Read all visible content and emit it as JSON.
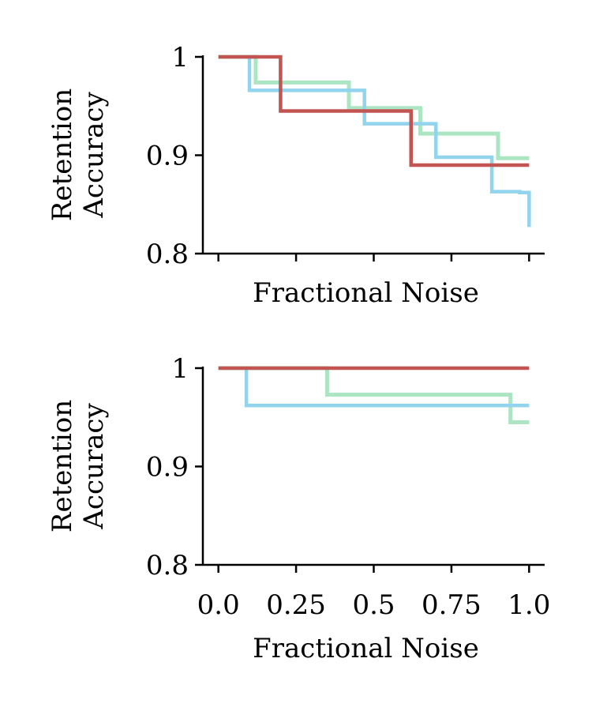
{
  "chart_data": [
    {
      "type": "line",
      "step": true,
      "xlabel": "Fractional Noise",
      "ylabel": [
        "Retention",
        "Accuracy"
      ],
      "xlim": [
        -0.05,
        1.05
      ],
      "ylim": [
        0.8,
        1.0
      ],
      "xticks": [
        0.0,
        0.25,
        0.5,
        0.75,
        1.0
      ],
      "xtick_labels": [
        "",
        "",
        "",
        "",
        ""
      ],
      "yticks": [
        0.8,
        0.9,
        1.0
      ],
      "ytick_labels": [
        "0.8",
        "0.9",
        "1"
      ],
      "series": [
        {
          "color": "#abe5c2",
          "x": [
            0.0,
            0.12,
            0.12,
            0.42,
            0.42,
            0.65,
            0.65,
            0.9,
            0.9,
            1.0
          ],
          "y": [
            1.0,
            1.0,
            0.974,
            0.974,
            0.948,
            0.948,
            0.922,
            0.922,
            0.897,
            0.897
          ]
        },
        {
          "color": "#92d4ee",
          "x": [
            0.1,
            0.1,
            0.47,
            0.47,
            0.7,
            0.7,
            0.88,
            0.88,
            0.97,
            0.97,
            1.0,
            1.0
          ],
          "y": [
            1.0,
            0.966,
            0.966,
            0.932,
            0.932,
            0.898,
            0.898,
            0.863,
            0.863,
            0.862,
            0.862,
            0.827
          ]
        },
        {
          "color": "#c25452",
          "x": [
            0.0,
            0.2,
            0.2,
            0.62,
            0.62,
            1.0
          ],
          "y": [
            1.0,
            1.0,
            0.945,
            0.945,
            0.89,
            0.89
          ]
        }
      ]
    },
    {
      "type": "line",
      "step": true,
      "xlabel": "Fractional Noise",
      "ylabel": [
        "Retention",
        "Accuracy"
      ],
      "xlim": [
        -0.05,
        1.05
      ],
      "ylim": [
        0.8,
        1.0
      ],
      "xticks": [
        0.0,
        0.25,
        0.5,
        0.75,
        1.0
      ],
      "xtick_labels": [
        "0.0",
        "0.25",
        "0.5",
        "0.75",
        "1.0"
      ],
      "yticks": [
        0.8,
        0.9,
        1.0
      ],
      "ytick_labels": [
        "0.8",
        "0.9",
        "1"
      ],
      "series": [
        {
          "color": "#abe5c2",
          "x": [
            0.0,
            0.35,
            0.35,
            0.94,
            0.94,
            1.0
          ],
          "y": [
            1.0,
            1.0,
            0.973,
            0.973,
            0.945,
            0.945
          ]
        },
        {
          "color": "#92d4ee",
          "x": [
            0.09,
            0.09,
            1.0
          ],
          "y": [
            1.0,
            0.962,
            0.962
          ]
        },
        {
          "color": "#c25452",
          "x": [
            0.0,
            1.0
          ],
          "y": [
            1.0,
            1.0
          ]
        }
      ]
    }
  ]
}
